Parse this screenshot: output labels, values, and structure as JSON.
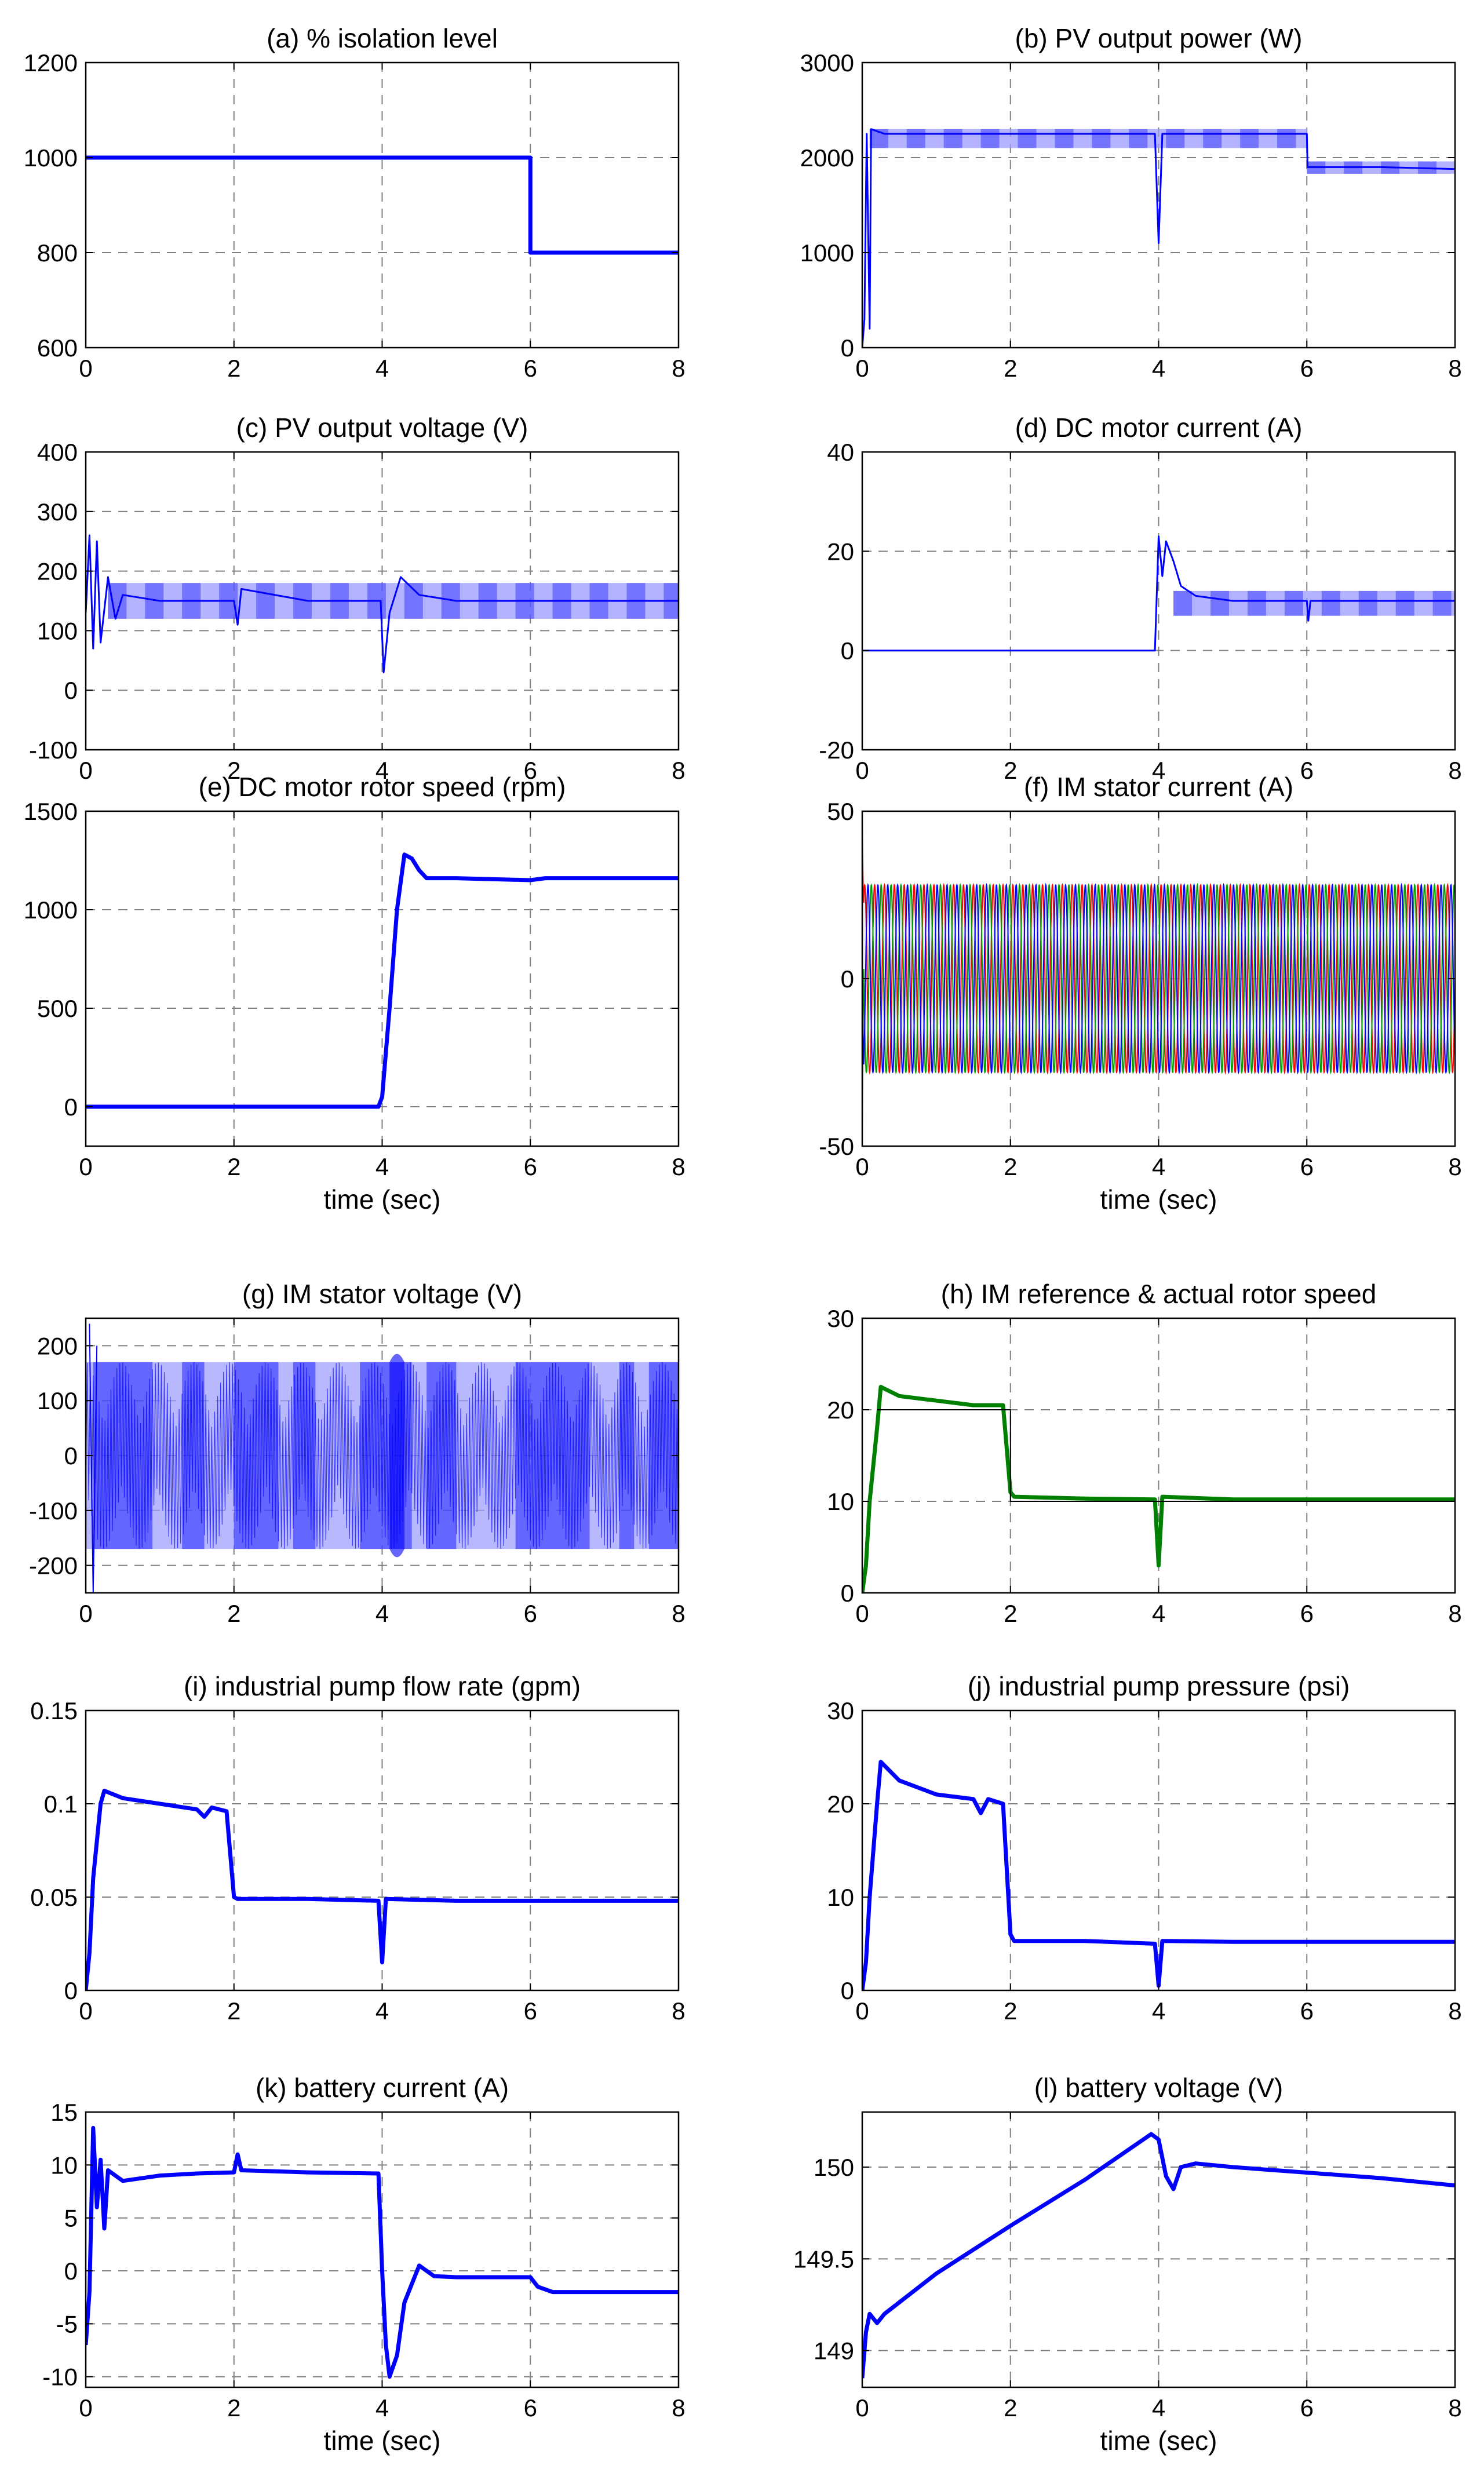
{
  "figure": {
    "panel_color": "#0000ff",
    "panel_color_green": "#008000",
    "panel_color_light": "#9a9aff",
    "grid_color": "#808080"
  },
  "chart_data": [
    {
      "id": "a",
      "type": "line",
      "title": "(a) % isolation level",
      "xlabel": "",
      "xlim": [
        0,
        8
      ],
      "ylim": [
        600,
        1200
      ],
      "xticks": [
        "0",
        "2",
        "4",
        "6",
        "8"
      ],
      "yticks": [
        "600",
        "800",
        "1000",
        "1200"
      ],
      "style": "thick",
      "series": [
        {
          "color": "#0000ff",
          "points": [
            [
              0,
              1000
            ],
            [
              6,
              1000
            ],
            [
              6,
              800
            ],
            [
              8,
              800
            ]
          ]
        }
      ]
    },
    {
      "id": "b",
      "type": "line",
      "title": "(b) PV output power (W)",
      "xlabel": "",
      "xlim": [
        0,
        8
      ],
      "ylim": [
        0,
        3000
      ],
      "xticks": [
        "0",
        "2",
        "4",
        "6",
        "8"
      ],
      "yticks": [
        "0",
        "1000",
        "2000",
        "3000"
      ],
      "style": "band",
      "series": [
        {
          "color": "#0000ff",
          "points": [
            [
              0,
              0
            ],
            [
              0.03,
              300
            ],
            [
              0.06,
              2250
            ],
            [
              0.1,
              200
            ],
            [
              0.12,
              2300
            ],
            [
              0.3,
              2250
            ],
            [
              1,
              2250
            ],
            [
              2,
              2250
            ],
            [
              3,
              2250
            ],
            [
              3.95,
              2250
            ],
            [
              4.0,
              1100
            ],
            [
              4.05,
              2250
            ],
            [
              5,
              2250
            ],
            [
              6,
              2250
            ],
            [
              6.01,
              1900
            ],
            [
              7,
              1900
            ],
            [
              8,
              1880
            ]
          ]
        }
      ],
      "band": [
        {
          "x0": 0.1,
          "x1": 6.0,
          "lo": 2100,
          "hi": 2300
        },
        {
          "x0": 6.0,
          "x1": 8.0,
          "lo": 1830,
          "hi": 1960
        }
      ]
    },
    {
      "id": "c",
      "type": "line",
      "title": "(c) PV output voltage (V)",
      "xlabel": "",
      "xlim": [
        0,
        8
      ],
      "ylim": [
        -100,
        400
      ],
      "xticks": [
        "0",
        "2",
        "4",
        "6",
        "8"
      ],
      "yticks": [
        "-100",
        "0",
        "100",
        "200",
        "300",
        "400"
      ],
      "style": "band",
      "series": [
        {
          "color": "#0000ff",
          "points": [
            [
              0,
              130
            ],
            [
              0.05,
              260
            ],
            [
              0.1,
              70
            ],
            [
              0.15,
              250
            ],
            [
              0.2,
              80
            ],
            [
              0.3,
              190
            ],
            [
              0.4,
              120
            ],
            [
              0.5,
              160
            ],
            [
              1,
              150
            ],
            [
              2,
              150
            ],
            [
              2.05,
              110
            ],
            [
              2.1,
              170
            ],
            [
              3,
              150
            ],
            [
              3.98,
              150
            ],
            [
              4.02,
              30
            ],
            [
              4.1,
              130
            ],
            [
              4.25,
              190
            ],
            [
              4.5,
              160
            ],
            [
              5,
              150
            ],
            [
              6,
              150
            ],
            [
              7,
              150
            ],
            [
              8,
              150
            ]
          ]
        }
      ],
      "band": [
        {
          "x0": 0.3,
          "x1": 8.0,
          "lo": 120,
          "hi": 180
        }
      ]
    },
    {
      "id": "d",
      "type": "line",
      "title": "(d) DC motor current (A)",
      "xlabel": "",
      "xlim": [
        0,
        8
      ],
      "ylim": [
        -20,
        40
      ],
      "xticks": [
        "0",
        "2",
        "4",
        "6",
        "8"
      ],
      "yticks": [
        "-20",
        "0",
        "20",
        "40"
      ],
      "style": "band",
      "series": [
        {
          "color": "#0000ff",
          "points": [
            [
              0,
              0
            ],
            [
              3.95,
              0
            ],
            [
              4.0,
              23
            ],
            [
              4.05,
              15
            ],
            [
              4.1,
              22
            ],
            [
              4.2,
              18
            ],
            [
              4.3,
              13
            ],
            [
              4.5,
              11
            ],
            [
              5,
              10
            ],
            [
              6,
              10
            ],
            [
              6.02,
              6
            ],
            [
              6.05,
              10
            ],
            [
              7,
              10
            ],
            [
              8,
              10
            ]
          ]
        }
      ],
      "band": [
        {
          "x0": 4.2,
          "x1": 8.0,
          "lo": 7,
          "hi": 12
        }
      ]
    },
    {
      "id": "e",
      "type": "line",
      "title": "(e) DC motor rotor speed (rpm)",
      "xlabel": "time (sec)",
      "xlim": [
        0,
        8
      ],
      "ylim": [
        -200,
        1500
      ],
      "xticks": [
        "0",
        "2",
        "4",
        "6",
        "8"
      ],
      "yticks": [
        "0",
        "500",
        "1000",
        "1500"
      ],
      "style": "thick",
      "series": [
        {
          "color": "#0000ff",
          "points": [
            [
              0,
              0
            ],
            [
              3.95,
              0
            ],
            [
              4.0,
              50
            ],
            [
              4.1,
              500
            ],
            [
              4.2,
              1000
            ],
            [
              4.3,
              1280
            ],
            [
              4.4,
              1260
            ],
            [
              4.5,
              1200
            ],
            [
              4.6,
              1160
            ],
            [
              5,
              1160
            ],
            [
              6,
              1150
            ],
            [
              6.2,
              1160
            ],
            [
              7,
              1160
            ],
            [
              8,
              1160
            ]
          ]
        }
      ]
    },
    {
      "id": "f",
      "type": "line",
      "title": "(f) IM stator current (A)",
      "xlabel": "time (sec)",
      "xlim": [
        0,
        8
      ],
      "ylim": [
        -50,
        50
      ],
      "xticks": [
        "0",
        "2",
        "4",
        "6",
        "8"
      ],
      "yticks": [
        "-50",
        "0",
        "50"
      ],
      "style": "threephase",
      "series": [
        {
          "color": "#ff0000",
          "amplitude": 28
        },
        {
          "color": "#00a000",
          "amplitude": 28
        },
        {
          "color": "#0000ff",
          "amplitude": 28
        }
      ]
    },
    {
      "id": "g",
      "type": "line",
      "title": "(g) IM stator voltage (V)",
      "xlabel": "",
      "xlim": [
        0,
        8
      ],
      "ylim": [
        -250,
        250
      ],
      "xticks": [
        "0",
        "2",
        "4",
        "6",
        "8"
      ],
      "yticks": [
        "-200",
        "-100",
        "0",
        "100",
        "200"
      ],
      "style": "pwm",
      "series": [
        {
          "color": "#0000ff",
          "amplitude": 170
        }
      ]
    },
    {
      "id": "h",
      "type": "line",
      "title": "(h) IM reference & actual rotor speed",
      "xlabel": "",
      "xlim": [
        0,
        8
      ],
      "ylim": [
        0,
        30
      ],
      "xticks": [
        "0",
        "2",
        "4",
        "6",
        "8"
      ],
      "yticks": [
        "0",
        "10",
        "20",
        "30"
      ],
      "style": "thick",
      "series": [
        {
          "color": "#008000",
          "points": [
            [
              0,
              0
            ],
            [
              0.05,
              3
            ],
            [
              0.1,
              10
            ],
            [
              0.2,
              18
            ],
            [
              0.25,
              22.5
            ],
            [
              0.5,
              21.5
            ],
            [
              1,
              21
            ],
            [
              1.5,
              20.5
            ],
            [
              1.9,
              20.5
            ],
            [
              2.0,
              11
            ],
            [
              2.05,
              10.5
            ],
            [
              3,
              10.3
            ],
            [
              3.95,
              10.2
            ],
            [
              4.0,
              3
            ],
            [
              4.05,
              10.5
            ],
            [
              5,
              10.2
            ],
            [
              6,
              10.2
            ],
            [
              7,
              10.2
            ],
            [
              8,
              10.2
            ]
          ]
        },
        {
          "color": "#000000",
          "points": [
            [
              0.2,
              20
            ],
            [
              2.0,
              20
            ],
            [
              2.0,
              10
            ],
            [
              8,
              10
            ]
          ],
          "thin": true
        }
      ]
    },
    {
      "id": "i",
      "type": "line",
      "title": "(i) industrial pump flow rate (gpm)",
      "xlabel": "",
      "xlim": [
        0,
        8
      ],
      "ylim": [
        0,
        0.15
      ],
      "xticks": [
        "0",
        "2",
        "4",
        "6",
        "8"
      ],
      "yticks": [
        "0",
        "0.05",
        "0.1",
        "0.15"
      ],
      "style": "thick",
      "series": [
        {
          "color": "#0000ff",
          "points": [
            [
              0,
              0
            ],
            [
              0.05,
              0.02
            ],
            [
              0.1,
              0.06
            ],
            [
              0.2,
              0.1
            ],
            [
              0.25,
              0.107
            ],
            [
              0.5,
              0.103
            ],
            [
              1,
              0.1
            ],
            [
              1.5,
              0.097
            ],
            [
              1.6,
              0.093
            ],
            [
              1.7,
              0.098
            ],
            [
              1.9,
              0.096
            ],
            [
              2.0,
              0.05
            ],
            [
              2.05,
              0.049
            ],
            [
              3,
              0.049
            ],
            [
              3.95,
              0.048
            ],
            [
              4.0,
              0.015
            ],
            [
              4.05,
              0.049
            ],
            [
              5,
              0.048
            ],
            [
              6,
              0.048
            ],
            [
              7,
              0.048
            ],
            [
              8,
              0.048
            ]
          ]
        }
      ]
    },
    {
      "id": "j",
      "type": "line",
      "title": "(j) industrial pump pressure (psi)",
      "xlabel": "",
      "xlim": [
        0,
        8
      ],
      "ylim": [
        0,
        30
      ],
      "xticks": [
        "0",
        "2",
        "4",
        "6",
        "8"
      ],
      "yticks": [
        "0",
        "10",
        "20",
        "30"
      ],
      "style": "thick",
      "series": [
        {
          "color": "#0000ff",
          "points": [
            [
              0,
              0
            ],
            [
              0.05,
              3
            ],
            [
              0.1,
              10
            ],
            [
              0.2,
              20
            ],
            [
              0.25,
              24.5
            ],
            [
              0.5,
              22.5
            ],
            [
              1,
              21
            ],
            [
              1.5,
              20.5
            ],
            [
              1.6,
              19
            ],
            [
              1.7,
              20.5
            ],
            [
              1.9,
              20
            ],
            [
              2.0,
              6
            ],
            [
              2.05,
              5.3
            ],
            [
              3,
              5.3
            ],
            [
              3.95,
              5
            ],
            [
              4.0,
              0.5
            ],
            [
              4.05,
              5.3
            ],
            [
              5,
              5.2
            ],
            [
              6,
              5.2
            ],
            [
              7,
              5.2
            ],
            [
              8,
              5.2
            ]
          ]
        }
      ]
    },
    {
      "id": "k",
      "type": "line",
      "title": "(k) battery current (A)",
      "xlabel": "time (sec)",
      "xlim": [
        0,
        8
      ],
      "ylim": [
        -11,
        15
      ],
      "xticks": [
        "0",
        "2",
        "4",
        "6",
        "8"
      ],
      "yticks": [
        "-10",
        "-5",
        "0",
        "5",
        "10",
        "15"
      ],
      "style": "thick",
      "series": [
        {
          "color": "#0000ff",
          "points": [
            [
              0,
              -7
            ],
            [
              0.05,
              -2
            ],
            [
              0.1,
              13.5
            ],
            [
              0.15,
              6
            ],
            [
              0.2,
              10.5
            ],
            [
              0.25,
              4
            ],
            [
              0.3,
              9.5
            ],
            [
              0.5,
              8.5
            ],
            [
              1,
              9
            ],
            [
              1.5,
              9.2
            ],
            [
              2.0,
              9.3
            ],
            [
              2.05,
              11
            ],
            [
              2.1,
              9.5
            ],
            [
              3,
              9.3
            ],
            [
              3.95,
              9.2
            ],
            [
              4.0,
              0
            ],
            [
              4.05,
              -7
            ],
            [
              4.1,
              -10
            ],
            [
              4.2,
              -8
            ],
            [
              4.3,
              -3
            ],
            [
              4.5,
              0.5
            ],
            [
              4.7,
              -0.5
            ],
            [
              5,
              -0.6
            ],
            [
              6,
              -0.6
            ],
            [
              6.1,
              -1.5
            ],
            [
              6.3,
              -2
            ],
            [
              7,
              -2
            ],
            [
              8,
              -2
            ]
          ]
        }
      ]
    },
    {
      "id": "l",
      "type": "line",
      "title": "(l) battery voltage (V)",
      "xlabel": "time (sec)",
      "xlim": [
        0,
        8
      ],
      "ylim": [
        148.8,
        150.3
      ],
      "xticks": [
        "0",
        "2",
        "4",
        "6",
        "8"
      ],
      "yticks": [
        "149",
        "149.5",
        "150"
      ],
      "style": "thick",
      "series": [
        {
          "color": "#0000ff",
          "points": [
            [
              0,
              148.85
            ],
            [
              0.05,
              149.1
            ],
            [
              0.1,
              149.2
            ],
            [
              0.2,
              149.15
            ],
            [
              0.3,
              149.2
            ],
            [
              1,
              149.42
            ],
            [
              2,
              149.68
            ],
            [
              3,
              149.93
            ],
            [
              3.9,
              150.18
            ],
            [
              4.0,
              150.15
            ],
            [
              4.1,
              149.95
            ],
            [
              4.2,
              149.88
            ],
            [
              4.3,
              150.0
            ],
            [
              4.5,
              150.02
            ],
            [
              5,
              150.0
            ],
            [
              6,
              149.97
            ],
            [
              7,
              149.94
            ],
            [
              8,
              149.9
            ]
          ]
        }
      ]
    }
  ]
}
